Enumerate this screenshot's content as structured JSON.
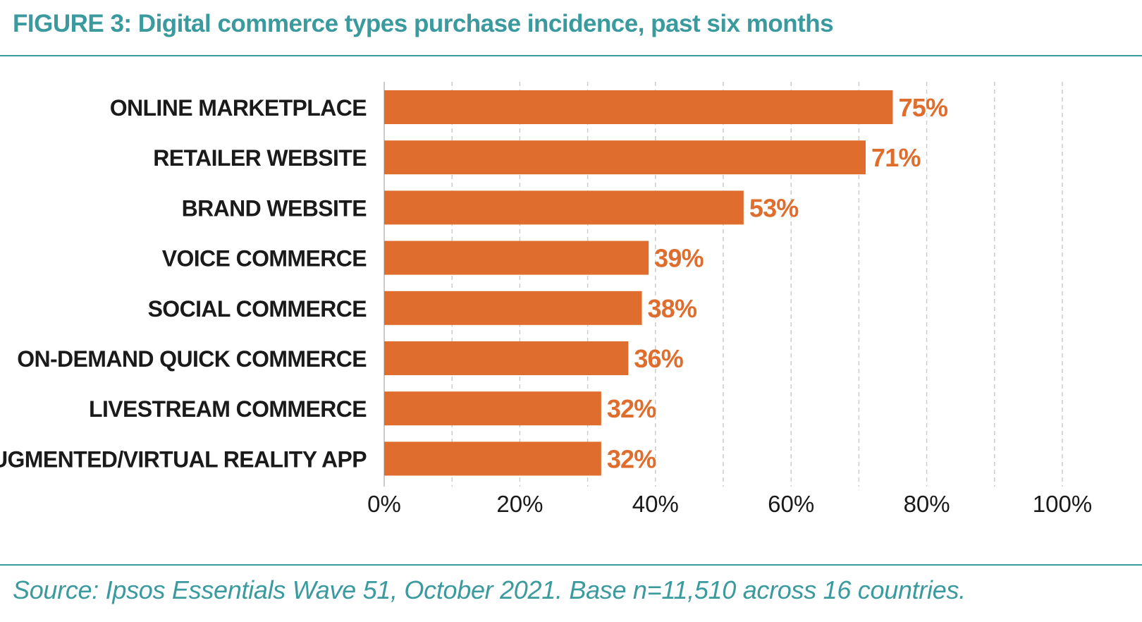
{
  "title": "FIGURE 3: Digital commerce types purchase incidence, past six months",
  "source": "Source: Ipsos Essentials Wave 51, October 2021. Base n=11,510 across 16 countries.",
  "colors": {
    "accent": "#3a9a9e",
    "bar": "#df6d2d",
    "label": "#1a1a1a",
    "grid": "#cccccc"
  },
  "chart_data": {
    "type": "bar",
    "orientation": "horizontal",
    "categories": [
      "ONLINE MARKETPLACE",
      "RETAILER WEBSITE",
      "BRAND WEBSITE",
      "VOICE COMMERCE",
      "SOCIAL COMMERCE",
      "ON-DEMAND QUICK COMMERCE",
      "LIVESTREAM COMMERCE",
      "AUGMENTED/VIRTUAL REALITY APP"
    ],
    "values": [
      75,
      71,
      53,
      39,
      38,
      36,
      32,
      32
    ],
    "data_labels": [
      "75%",
      "71%",
      "53%",
      "39%",
      "38%",
      "36%",
      "32%",
      "32%"
    ],
    "xlim": [
      0,
      100
    ],
    "x_ticks": [
      0,
      20,
      40,
      60,
      80,
      100
    ],
    "x_tick_labels": [
      "0%",
      "20%",
      "40%",
      "60%",
      "80%",
      "100%"
    ],
    "grid": true,
    "legend": "none"
  }
}
